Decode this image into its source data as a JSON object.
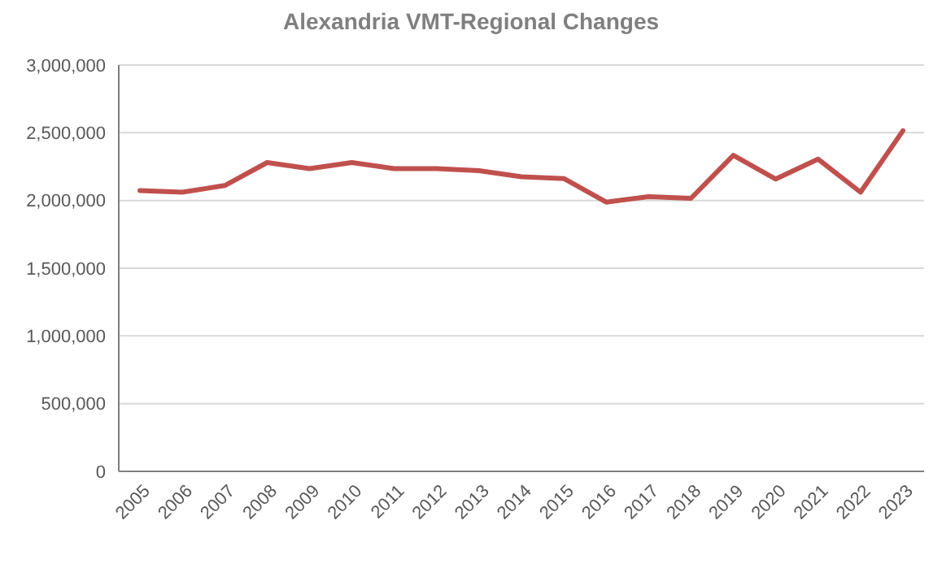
{
  "chart_data": {
    "type": "line",
    "title": "Alexandria VMT-Regional Changes",
    "categories": [
      "2005",
      "2006",
      "2007",
      "2008",
      "2009",
      "2010",
      "2011",
      "2012",
      "2013",
      "2014",
      "2015",
      "2016",
      "2017",
      "2018",
      "2019",
      "2020",
      "2021",
      "2022",
      "2023"
    ],
    "series": [
      {
        "color": "#c0504d",
        "values": [
          2073000,
          2061000,
          2110000,
          2280000,
          2235000,
          2280000,
          2235000,
          2235000,
          2220000,
          2175000,
          2162000,
          1988000,
          2028000,
          2016000,
          2333000,
          2158000,
          2305000,
          2061000,
          2515000
        ]
      }
    ],
    "ylim": [
      0,
      3000000
    ],
    "yticks": [
      {
        "value": 0,
        "label": "0"
      },
      {
        "value": 500000,
        "label": "500,000"
      },
      {
        "value": 1000000,
        "label": "1,000,000"
      },
      {
        "value": 1500000,
        "label": "1,500,000"
      },
      {
        "value": 2000000,
        "label": "2,000,000"
      },
      {
        "value": 2500000,
        "label": "2,500,000"
      },
      {
        "value": 3000000,
        "label": "3,000,000"
      }
    ],
    "grid": "y",
    "marker": "none",
    "line_style": "solid"
  }
}
